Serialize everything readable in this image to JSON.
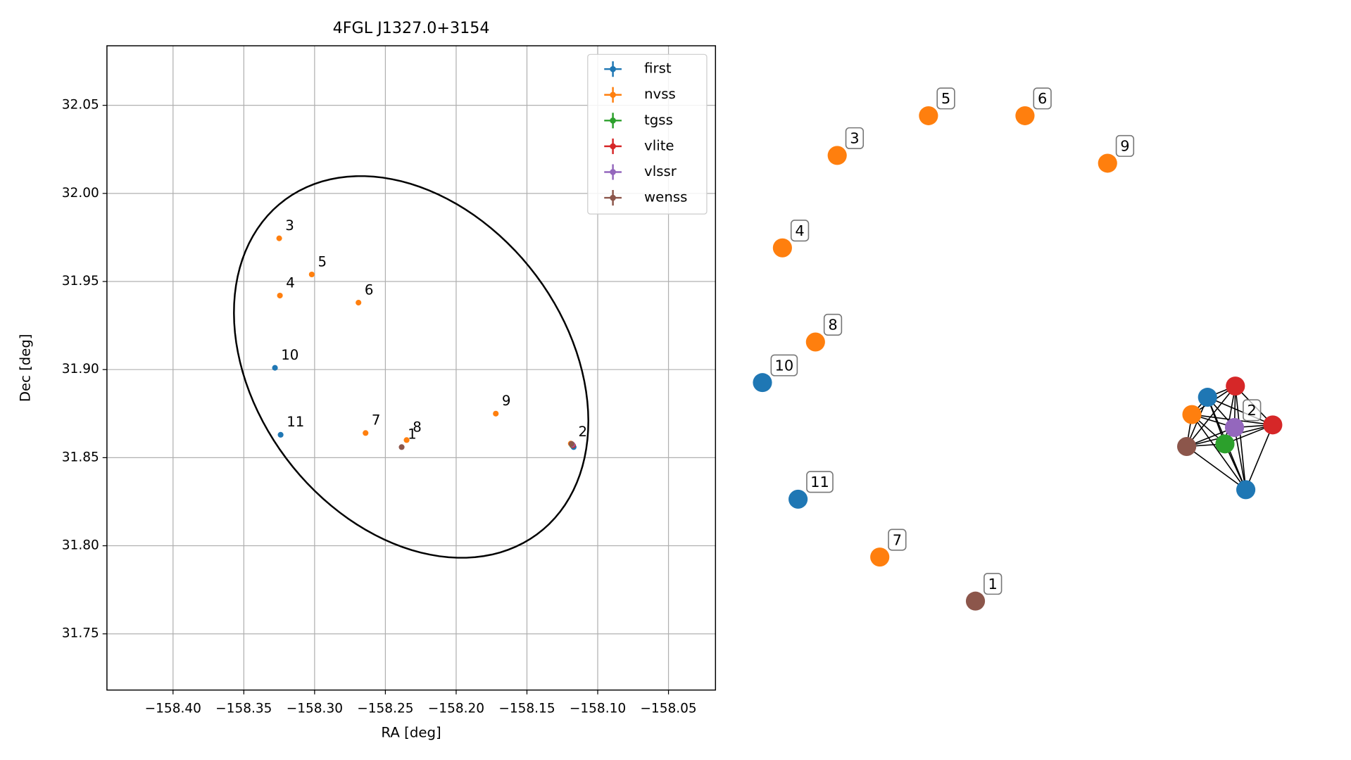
{
  "chart_data": [
    {
      "type": "scatter",
      "title": "4FGL J1327.0+3154",
      "xlabel": "RA [deg]",
      "ylabel": "Dec [deg]",
      "xlim": [
        -158.4467,
        -158.0168
      ],
      "ylim": [
        31.7181,
        32.0838
      ],
      "xticks": [
        {
          "value": -158.4,
          "label": "−158.40"
        },
        {
          "value": -158.35,
          "label": "−158.35"
        },
        {
          "value": -158.3,
          "label": "−158.30"
        },
        {
          "value": -158.25,
          "label": "−158.25"
        },
        {
          "value": -158.2,
          "label": "−158.20"
        },
        {
          "value": -158.15,
          "label": "−158.15"
        },
        {
          "value": -158.1,
          "label": "−158.10"
        },
        {
          "value": -158.05,
          "label": "−158.05"
        }
      ],
      "yticks": [
        31.75,
        {
          "value": 31.8,
          "label": "31.80"
        },
        31.85,
        {
          "value": 31.9,
          "label": "31.90"
        },
        31.95,
        {
          "value": 32,
          "label": "32.00"
        },
        32.05
      ],
      "grid": true,
      "legend": "upper right",
      "series": [
        {
          "name": "first",
          "color": "#1f77b4",
          "x": [
            -158.328,
            -158.324,
            -158.117,
            -158.118
          ],
          "y": [
            31.901,
            31.863,
            31.856,
            31.857
          ]
        },
        {
          "name": "nvss",
          "color": "#ff7f0e",
          "x": [
            -158.325,
            -158.3245,
            -158.302,
            -158.269,
            -158.264,
            -158.235,
            -158.172,
            -158.119
          ],
          "y": [
            31.9745,
            31.942,
            31.954,
            31.938,
            31.864,
            31.86,
            31.875,
            31.858
          ]
        },
        {
          "name": "tgss",
          "color": "#2ca02c",
          "x": [
            -158.118
          ],
          "y": [
            31.857
          ]
        },
        {
          "name": "vlite",
          "color": "#d62728",
          "x": [
            -158.118,
            -158.1175
          ],
          "y": [
            31.8575,
            31.857
          ]
        },
        {
          "name": "vlssr",
          "color": "#9467bd",
          "x": [
            -158.118
          ],
          "y": [
            31.8575
          ]
        },
        {
          "name": "wenss",
          "color": "#8c564b",
          "x": [
            -158.2385,
            -158.1185
          ],
          "y": [
            31.856,
            31.8578
          ]
        }
      ],
      "ellipse": {
        "x": -158.2318,
        "y": 31.9015,
        "width": 0.2686,
        "height": 0.1936,
        "angle": -31.5,
        "color": "#000000"
      },
      "annotations": [
        {
          "text": "1",
          "x": -158.2385,
          "y": 31.856
        },
        {
          "text": "2",
          "x": -158.118,
          "y": 31.8575
        },
        {
          "text": "3",
          "x": -158.325,
          "y": 31.9745
        },
        {
          "text": "4",
          "x": -158.3245,
          "y": 31.942
        },
        {
          "text": "5",
          "x": -158.302,
          "y": 31.954
        },
        {
          "text": "6",
          "x": -158.269,
          "y": 31.938
        },
        {
          "text": "7",
          "x": -158.264,
          "y": 31.864
        },
        {
          "text": "8",
          "x": -158.235,
          "y": 31.86
        },
        {
          "text": "9",
          "x": -158.172,
          "y": 31.875
        },
        {
          "text": "10",
          "x": -158.328,
          "y": 31.901
        },
        {
          "text": "11",
          "x": -158.324,
          "y": 31.863
        }
      ]
    },
    {
      "type": "network",
      "nodes": [
        {
          "label": "1",
          "color": "#8c564b"
        },
        {
          "label": "3",
          "color": "#ff7f0e"
        },
        {
          "label": "4",
          "color": "#ff7f0e"
        },
        {
          "label": "5",
          "color": "#ff7f0e"
        },
        {
          "label": "6",
          "color": "#ff7f0e"
        },
        {
          "label": "7",
          "color": "#ff7f0e"
        },
        {
          "label": "8",
          "color": "#ff7f0e"
        },
        {
          "label": "9",
          "color": "#ff7f0e"
        },
        {
          "label": "10",
          "color": "#1f77b4"
        },
        {
          "label": "11",
          "color": "#1f77b4"
        },
        {
          "label": "2",
          "color": "#9467bd"
        },
        {
          "label": null,
          "color": "#1f77b4"
        },
        {
          "label": null,
          "color": "#d62728"
        },
        {
          "label": null,
          "color": "#ff7f0e"
        },
        {
          "label": null,
          "color": "#d62728"
        },
        {
          "label": null,
          "color": "#8c564b"
        },
        {
          "label": null,
          "color": "#2ca02c"
        },
        {
          "label": null,
          "color": "#1f77b4"
        }
      ],
      "edges": [
        [
          10,
          11
        ],
        [
          10,
          12
        ],
        [
          10,
          13
        ],
        [
          10,
          14
        ],
        [
          10,
          15
        ],
        [
          10,
          16
        ],
        [
          10,
          17
        ],
        [
          11,
          12
        ],
        [
          11,
          13
        ],
        [
          11,
          14
        ],
        [
          11,
          15
        ],
        [
          11,
          16
        ],
        [
          11,
          17
        ],
        [
          12,
          13
        ],
        [
          12,
          14
        ],
        [
          12,
          15
        ],
        [
          12,
          16
        ],
        [
          12,
          17
        ],
        [
          13,
          14
        ],
        [
          13,
          15
        ],
        [
          13,
          16
        ],
        [
          13,
          17
        ],
        [
          14,
          15
        ],
        [
          14,
          16
        ],
        [
          14,
          17
        ],
        [
          15,
          16
        ],
        [
          15,
          17
        ],
        [
          16,
          17
        ]
      ]
    }
  ]
}
